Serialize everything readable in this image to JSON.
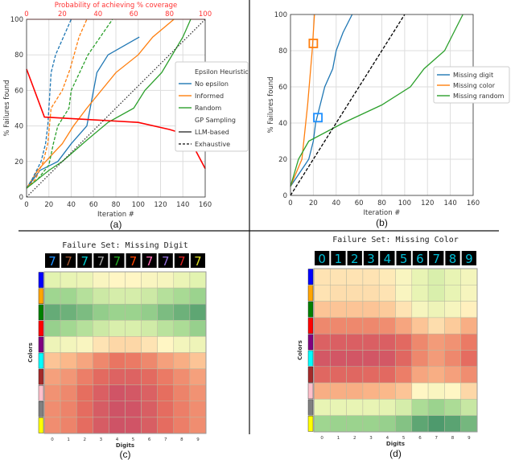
{
  "chart_data": [
    {
      "type": "line",
      "caption": "(a)",
      "xlabel": "Iteration #",
      "ylabel": "% Failures found",
      "xlim": [
        0,
        160
      ],
      "ylim": [
        0,
        100
      ],
      "xticks": [
        0,
        20,
        40,
        60,
        80,
        100,
        120,
        140,
        160
      ],
      "yticks": [
        0,
        20,
        40,
        60,
        80,
        100
      ],
      "grid": true,
      "top_axis": {
        "label": "Probability of achieving % coverage",
        "range": [
          0,
          100
        ],
        "ticks": [
          0,
          20,
          40,
          60,
          80,
          100
        ],
        "color": "#ff3333"
      },
      "legend": {
        "placement": "right",
        "headers": [
          "Epsilon Heuristic",
          "GP Sampling"
        ]
      },
      "series": [
        {
          "name": "No epsilon",
          "group": "LLM-based",
          "color": "#1f77b4",
          "style": "solid",
          "x": [
            0,
            12,
            28,
            40,
            54,
            63,
            73,
            101
          ],
          "y": [
            5,
            15,
            20,
            30,
            40,
            70,
            80,
            90
          ]
        },
        {
          "name": "Informed",
          "group": "LLM-based",
          "color": "#ff7f0e",
          "style": "solid",
          "x": [
            0,
            10,
            20,
            32,
            42,
            54,
            80,
            100,
            113,
            132
          ],
          "y": [
            5,
            15,
            22,
            30,
            40,
            50,
            70,
            80,
            90,
            100
          ]
        },
        {
          "name": "Random",
          "group": "LLM-based",
          "color": "#2ca02c",
          "style": "solid",
          "x": [
            0,
            20,
            32,
            54,
            73,
            96,
            106,
            121,
            140,
            147
          ],
          "y": [
            5,
            15,
            20,
            32,
            42,
            50,
            60,
            70,
            90,
            100
          ]
        },
        {
          "group": "Exhaustive",
          "color": "#1f77b4",
          "style": "dashed",
          "x": [
            0,
            5,
            13,
            17,
            19,
            20,
            22,
            26,
            33,
            40
          ],
          "y": [
            5,
            10,
            20,
            30,
            40,
            50,
            70,
            80,
            90,
            100
          ]
        },
        {
          "group": "Exhaustive",
          "color": "#ff7f0e",
          "style": "dashed",
          "x": [
            0,
            8,
            15,
            19,
            22,
            32,
            39,
            47,
            54
          ],
          "y": [
            5,
            10,
            20,
            30,
            50,
            60,
            72,
            90,
            100
          ]
        },
        {
          "group": "Exhaustive",
          "color": "#2ca02c",
          "style": "dashed",
          "x": [
            0,
            10,
            20,
            24,
            28,
            38,
            40,
            55,
            77
          ],
          "y": [
            5,
            10,
            18,
            30,
            40,
            50,
            60,
            80,
            100
          ]
        },
        {
          "color": "#333333",
          "style": "dotted",
          "x": [
            0,
            160
          ],
          "y": [
            0,
            100
          ]
        },
        {
          "axis": "top",
          "color": "#ff0000",
          "style": "solid",
          "x": [
            0,
            10,
            62.5,
            80,
            90,
            100
          ],
          "y": [
            72,
            45,
            42,
            38,
            35,
            16
          ]
        }
      ],
      "legend_entries": [
        {
          "label": "Epsilon Heuristic",
          "style": "header"
        },
        {
          "label": "No epsilon",
          "color": "#1f77b4",
          "style": "solid"
        },
        {
          "label": "Informed",
          "color": "#ff7f0e",
          "style": "solid"
        },
        {
          "label": "Random",
          "color": "#2ca02c",
          "style": "solid"
        },
        {
          "label": "GP Sampling",
          "style": "header"
        },
        {
          "label": "LLM-based",
          "color": "#333333",
          "style": "solid"
        },
        {
          "label": "Exhaustive",
          "color": "#333333",
          "style": "dashed"
        }
      ]
    },
    {
      "type": "line",
      "caption": "(b)",
      "xlabel": "Iteration #",
      "ylabel": "% Failures found",
      "xlim": [
        0,
        160
      ],
      "ylim": [
        0,
        100
      ],
      "xticks": [
        0,
        20,
        40,
        60,
        80,
        100,
        120,
        140,
        160
      ],
      "yticks": [
        0,
        20,
        40,
        60,
        80,
        100
      ],
      "grid": true,
      "legend": {
        "placement": "right"
      },
      "series": [
        {
          "name": "Missing digit",
          "color": "#1f77b4",
          "style": "solid",
          "x": [
            0,
            16,
            20,
            22,
            26,
            30,
            37,
            40,
            46,
            54
          ],
          "y": [
            5,
            20,
            30,
            40,
            50,
            60,
            70,
            80,
            90,
            100
          ]
        },
        {
          "name": "Missing color",
          "color": "#ff7f0e",
          "style": "solid",
          "x": [
            0,
            10,
            15,
            19,
            21
          ],
          "y": [
            5,
            20,
            50,
            80,
            100
          ]
        },
        {
          "name": "Missing random",
          "color": "#2ca02c",
          "style": "solid",
          "x": [
            0,
            7,
            16,
            46,
            80,
            105,
            117,
            135,
            151
          ],
          "y": [
            5,
            20,
            30,
            40,
            50,
            60,
            70,
            80,
            100
          ]
        },
        {
          "color": "#000000",
          "style": "dashed",
          "x": [
            0,
            100
          ],
          "y": [
            0,
            100
          ]
        }
      ],
      "markers": [
        {
          "x": 20,
          "y": 84,
          "color": "#ff7f0e",
          "shape": "square"
        },
        {
          "x": 24,
          "y": 43,
          "color": "#1e90ff",
          "shape": "square"
        }
      ]
    },
    {
      "type": "heatmap",
      "caption": "(c)",
      "title": "Failure Set: Missing Digit",
      "xlabel": "Digits",
      "ylabel": "Colors",
      "xticks": [
        "0",
        "1",
        "2",
        "3",
        "4",
        "5",
        "6",
        "7",
        "8",
        "9"
      ],
      "row_colors": [
        "#0000ff",
        "#ffa500",
        "#008000",
        "#ff0000",
        "#800080",
        "#00ffff",
        "#a52a2a",
        "#ffc0cb",
        "#808080",
        "#ffff00"
      ],
      "thumb_glyphs": [
        "7",
        "7",
        "7",
        "7",
        "7",
        "7",
        "7",
        "7",
        "7",
        "7"
      ],
      "thumb_colors": [
        "#1e90ff",
        "#a0522d",
        "#00ced1",
        "#a0a0a0",
        "#22aa22",
        "#ff4500",
        "#ff69b4",
        "#9370db",
        "#dd2222",
        "#dddd22"
      ],
      "values": [
        [
          0.6,
          0.58,
          0.57,
          0.52,
          0.5,
          0.5,
          0.52,
          0.53,
          0.57,
          0.6
        ],
        [
          0.75,
          0.75,
          0.7,
          0.65,
          0.63,
          0.63,
          0.65,
          0.7,
          0.73,
          0.76
        ],
        [
          0.9,
          0.88,
          0.84,
          0.78,
          0.76,
          0.76,
          0.78,
          0.84,
          0.88,
          0.92
        ],
        [
          0.77,
          0.74,
          0.7,
          0.65,
          0.62,
          0.62,
          0.64,
          0.69,
          0.72,
          0.77
        ],
        [
          0.56,
          0.54,
          0.52,
          0.47,
          0.45,
          0.45,
          0.47,
          0.5,
          0.54,
          0.56
        ],
        [
          0.42,
          0.4,
          0.36,
          0.3,
          0.26,
          0.27,
          0.3,
          0.35,
          0.38,
          0.42
        ],
        [
          0.35,
          0.33,
          0.28,
          0.22,
          0.18,
          0.18,
          0.22,
          0.27,
          0.31,
          0.35
        ],
        [
          0.32,
          0.3,
          0.24,
          0.16,
          0.1,
          0.12,
          0.17,
          0.24,
          0.29,
          0.32
        ],
        [
          0.31,
          0.29,
          0.23,
          0.14,
          0.09,
          0.1,
          0.15,
          0.23,
          0.28,
          0.31
        ],
        [
          0.31,
          0.29,
          0.23,
          0.14,
          0.09,
          0.1,
          0.15,
          0.23,
          0.28,
          0.31
        ]
      ]
    },
    {
      "type": "heatmap",
      "caption": "(d)",
      "title": "Failure Set: Missing Color",
      "xlabel": "Digits",
      "ylabel": "Colors",
      "xticks": [
        "0",
        "1",
        "2",
        "3",
        "4",
        "5",
        "6",
        "7",
        "8",
        "9"
      ],
      "row_colors": [
        "#0000ff",
        "#ffa500",
        "#008000",
        "#ff0000",
        "#800080",
        "#00ffff",
        "#a52a2a",
        "#ffc0cb",
        "#808080",
        "#ffff00"
      ],
      "thumb_glyphs": [
        "0",
        "1",
        "2",
        "3",
        "4",
        "5",
        "6",
        "7",
        "8",
        "9"
      ],
      "thumb_colors": [
        "#00bcd4",
        "#00bcd4",
        "#00bcd4",
        "#00bcd4",
        "#00bcd4",
        "#00bcd4",
        "#00bcd4",
        "#00bcd4",
        "#00bcd4",
        "#00bcd4"
      ],
      "values": [
        [
          0.47,
          0.47,
          0.47,
          0.47,
          0.48,
          0.52,
          0.58,
          0.62,
          0.58,
          0.54
        ],
        [
          0.47,
          0.46,
          0.46,
          0.46,
          0.47,
          0.52,
          0.58,
          0.62,
          0.58,
          0.53
        ],
        [
          0.42,
          0.42,
          0.42,
          0.42,
          0.43,
          0.47,
          0.53,
          0.56,
          0.53,
          0.49
        ],
        [
          0.3,
          0.3,
          0.3,
          0.3,
          0.31,
          0.36,
          0.42,
          0.46,
          0.43,
          0.38
        ],
        [
          0.17,
          0.16,
          0.16,
          0.16,
          0.16,
          0.21,
          0.3,
          0.34,
          0.32,
          0.27
        ],
        [
          0.12,
          0.11,
          0.11,
          0.11,
          0.12,
          0.2,
          0.3,
          0.34,
          0.3,
          0.23
        ],
        [
          0.2,
          0.2,
          0.2,
          0.21,
          0.21,
          0.28,
          0.36,
          0.38,
          0.35,
          0.31
        ],
        [
          0.38,
          0.38,
          0.38,
          0.39,
          0.4,
          0.42,
          0.5,
          0.52,
          0.5,
          0.45
        ],
        [
          0.58,
          0.58,
          0.58,
          0.58,
          0.59,
          0.63,
          0.72,
          0.76,
          0.72,
          0.66
        ],
        [
          0.75,
          0.76,
          0.76,
          0.76,
          0.77,
          0.82,
          0.92,
          0.96,
          0.93,
          0.86
        ]
      ]
    }
  ]
}
